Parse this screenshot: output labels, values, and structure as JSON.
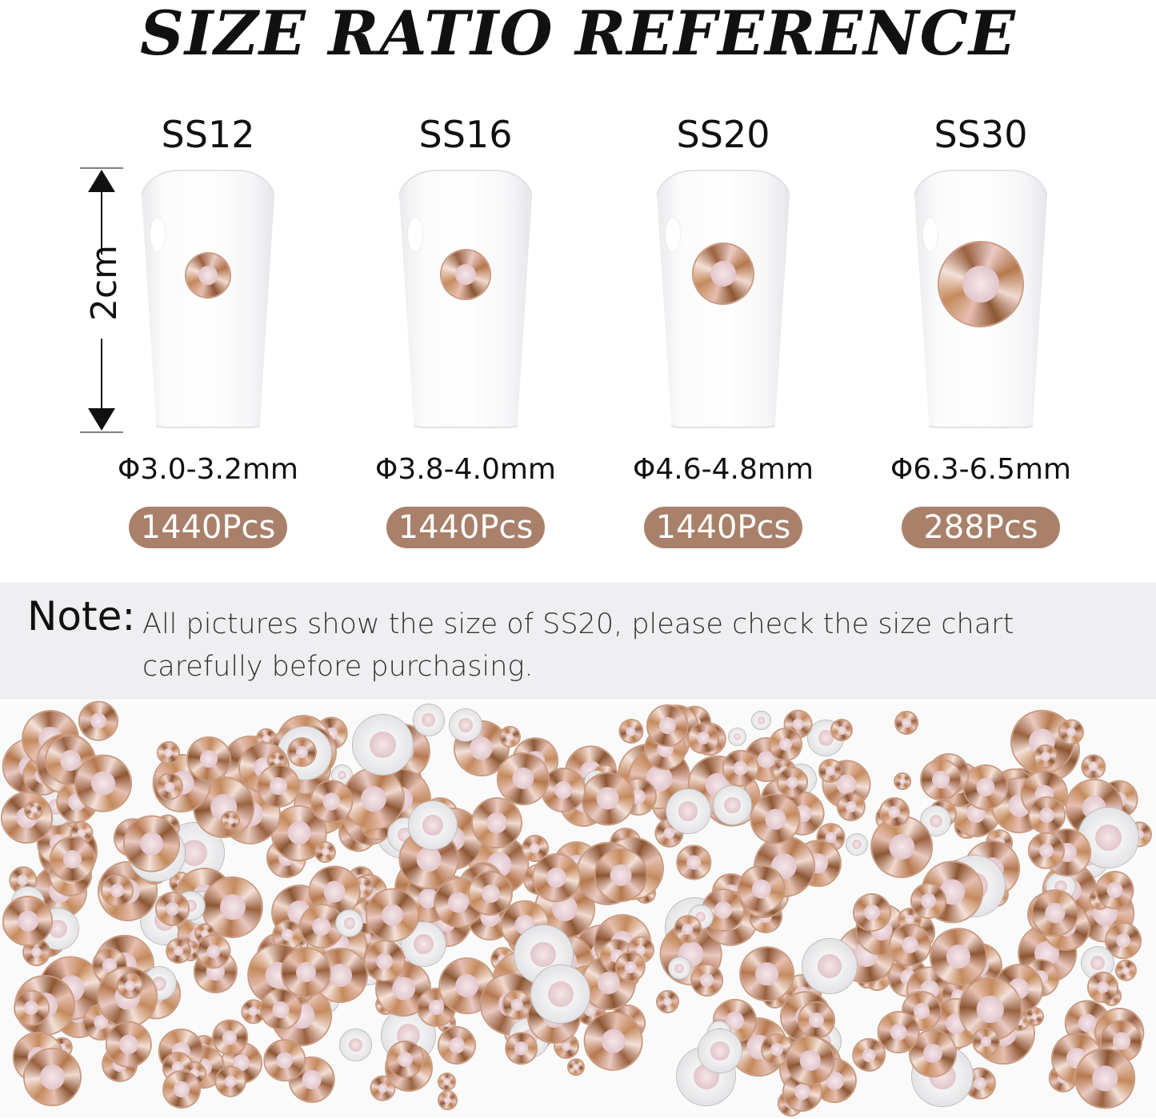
{
  "title": "SIZE RATIO REFERENCE",
  "measure_label": "2cm",
  "colors": {
    "badge": "#a9806a",
    "note_bg": "#efeff1",
    "stone": "#c89a80"
  },
  "sizes": [
    {
      "name": "SS12",
      "diameter": "Φ3.0-3.2mm",
      "count": "1440Pcs"
    },
    {
      "name": "SS16",
      "diameter": "Φ3.8-4.0mm",
      "count": "1440Pcs"
    },
    {
      "name": "SS20",
      "diameter": "Φ4.6-4.8mm",
      "count": "1440Pcs"
    },
    {
      "name": "SS30",
      "diameter": "Φ6.3-6.5mm",
      "count": "288Pcs"
    }
  ],
  "note": {
    "label": "Note:",
    "text": "All pictures show the size of SS20, please check the size chart carefully before purchasing."
  }
}
